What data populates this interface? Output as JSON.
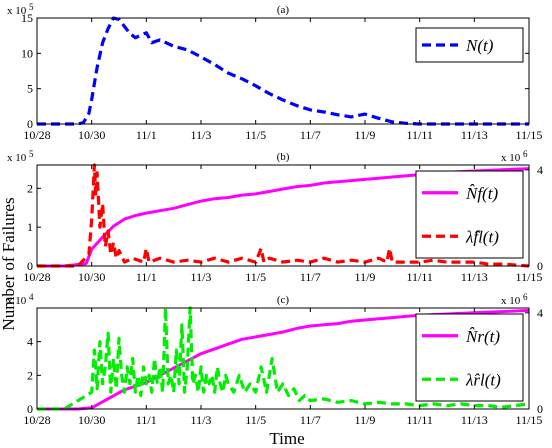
{
  "ylabel": "Number of Failures",
  "xlabel": "Time",
  "chart_data": [
    {
      "type": "line",
      "panel": "(a)",
      "x_ticks": [
        "10/28",
        "10/30",
        "11/1",
        "11/3",
        "11/5",
        "11/7",
        "11/9",
        "11/11",
        "11/13",
        "11/15"
      ],
      "xlim": [
        0,
        18
      ],
      "y_ticks": [
        "0",
        "5",
        "10",
        "15"
      ],
      "ylim": [
        0,
        15
      ],
      "y_scale_label": "x 10",
      "y_scale_exp": "5",
      "grid": false,
      "legend_position": "top-right",
      "series": [
        {
          "name": "N(t)",
          "axis": "left",
          "color": "#0000ff",
          "style": "dashed",
          "x": [
            0,
            0.5,
            1,
            1.5,
            1.7,
            1.9,
            2.0,
            2.2,
            2.4,
            2.6,
            2.8,
            3.0,
            3.2,
            3.4,
            3.6,
            3.8,
            4.0,
            4.2,
            4.5,
            5.0,
            5.5,
            6.0,
            6.5,
            7.0,
            7.5,
            8.0,
            8.5,
            9.0,
            9.5,
            10.0,
            10.5,
            11.0,
            11.5,
            12.0,
            12.5,
            13.0,
            13.5,
            14.0,
            14.5,
            15.0,
            15.5,
            16.0,
            17.0,
            18.0
          ],
          "y": [
            0.0,
            0.0,
            0.0,
            0.0,
            0.2,
            1.5,
            3.5,
            8.0,
            11.5,
            13.5,
            15.0,
            14.8,
            13.8,
            12.8,
            12.2,
            12.6,
            12.9,
            11.5,
            11.9,
            11.0,
            10.5,
            9.5,
            8.4,
            7.2,
            6.4,
            5.4,
            4.3,
            3.4,
            2.6,
            2.0,
            1.7,
            1.3,
            1.0,
            1.4,
            0.8,
            0.3,
            0.1,
            0.0,
            0.0,
            0.0,
            0.0,
            0.0,
            0.0,
            0.0
          ]
        }
      ]
    },
    {
      "type": "line",
      "panel": "(b)",
      "x_ticks": [
        "10/28",
        "10/30",
        "11/1",
        "11/3",
        "11/5",
        "11/7",
        "11/9",
        "11/11",
        "11/13",
        "11/15"
      ],
      "xlim": [
        0,
        18
      ],
      "y_ticks": [
        "0",
        "1",
        "2"
      ],
      "ylim": [
        0,
        2.6
      ],
      "y_scale_label": "x 10",
      "y_scale_exp": "5",
      "y2_ticks": [
        "0",
        "4"
      ],
      "y2lim": [
        0,
        4.2
      ],
      "y2_scale_label": "x 10",
      "y2_scale_exp": "6",
      "grid": false,
      "legend_position": "top-right",
      "series": [
        {
          "name": "N̂f(t)",
          "axis": "right",
          "color": "#ff00ff",
          "style": "solid",
          "x": [
            0,
            1,
            1.8,
            2.0,
            2.4,
            2.8,
            3.2,
            3.6,
            4.0,
            4.5,
            5.0,
            5.5,
            6.0,
            6.5,
            7.0,
            7.5,
            8.0,
            8.5,
            9.0,
            9.5,
            10.0,
            10.5,
            11.0,
            11.5,
            12.0,
            12.5,
            13.0,
            14.0,
            15.0,
            16.0,
            17.0,
            18.0
          ],
          "y": [
            0,
            0,
            0.1,
            0.7,
            1.2,
            1.65,
            1.95,
            2.1,
            2.2,
            2.3,
            2.4,
            2.55,
            2.7,
            2.8,
            2.85,
            2.95,
            3.0,
            3.1,
            3.2,
            3.3,
            3.35,
            3.45,
            3.5,
            3.55,
            3.6,
            3.65,
            3.7,
            3.8,
            3.9,
            3.95,
            4.0,
            4.05
          ]
        },
        {
          "name": "λ̂fl(t)",
          "axis": "left",
          "color": "#ff0000",
          "style": "dashed",
          "x": [
            0,
            1.5,
            1.9,
            2.0,
            2.1,
            2.15,
            2.2,
            2.3,
            2.4,
            2.5,
            2.6,
            2.7,
            2.8,
            2.9,
            3.0,
            3.2,
            3.5,
            3.9,
            4.0,
            4.1,
            4.5,
            5.0,
            5.5,
            6.0,
            6.5,
            7.0,
            7.5,
            8.0,
            8.2,
            8.3,
            8.5,
            9.0,
            9.5,
            10.0,
            10.5,
            11.0,
            11.5,
            12.0,
            12.5,
            12.8,
            12.9,
            13.0,
            13.5,
            14.0,
            14.5,
            15.0,
            15.5,
            16.0,
            16.5,
            17.0,
            18.0
          ],
          "y": [
            0,
            0,
            0.3,
            1.2,
            2.6,
            1.8,
            2.4,
            1.0,
            1.6,
            0.5,
            0.9,
            0.3,
            0.6,
            0.2,
            0.4,
            0.1,
            0.2,
            0.1,
            0.45,
            0.1,
            0.2,
            0.1,
            0.15,
            0.1,
            0.2,
            0.1,
            0.2,
            0.1,
            0.45,
            0.1,
            0.2,
            0.1,
            0.15,
            0.1,
            0.2,
            0.1,
            0.15,
            0.1,
            0.2,
            0.1,
            0.45,
            0.1,
            0.1,
            0.1,
            0.15,
            0.1,
            0.1,
            0.1,
            0.05,
            0.05,
            0.0
          ]
        }
      ]
    },
    {
      "type": "line",
      "panel": "(c)",
      "x_ticks": [
        "10/28",
        "10/30",
        "11/1",
        "11/3",
        "11/5",
        "11/7",
        "11/9",
        "11/11",
        "11/13",
        "11/15"
      ],
      "xlim": [
        0,
        18
      ],
      "y_ticks": [
        "0",
        "2",
        "4"
      ],
      "ylim": [
        0,
        6
      ],
      "y_scale_label": "x 10",
      "y_scale_exp": "4",
      "y2_ticks": [
        "0",
        "4"
      ],
      "y2lim": [
        0,
        4.2
      ],
      "y2_scale_label": "x 10",
      "y2_scale_exp": "6",
      "grid": false,
      "legend_position": "top-right",
      "series": [
        {
          "name": "N̂r(t)",
          "axis": "right",
          "color": "#ff00ff",
          "style": "solid",
          "x": [
            0,
            1.5,
            2.0,
            2.4,
            2.8,
            3.2,
            3.6,
            4.0,
            4.5,
            5.0,
            5.5,
            6.0,
            6.5,
            7.0,
            7.5,
            8.0,
            8.5,
            9.0,
            9.5,
            10.0,
            10.5,
            11.0,
            11.5,
            12.0,
            12.5,
            13.0,
            13.5,
            14.0,
            15.0,
            16.0,
            17.0,
            18.0
          ],
          "y": [
            0,
            0,
            0.05,
            0.3,
            0.55,
            0.8,
            0.95,
            1.1,
            1.4,
            1.7,
            2.0,
            2.3,
            2.5,
            2.7,
            2.9,
            3.0,
            3.1,
            3.2,
            3.35,
            3.45,
            3.5,
            3.55,
            3.65,
            3.7,
            3.75,
            3.8,
            3.85,
            3.9,
            3.95,
            4.0,
            4.05,
            4.1
          ]
        },
        {
          "name": "λ̂rl(t)",
          "axis": "left",
          "color": "#00ee00",
          "style": "dashed",
          "x": [
            0,
            1.0,
            1.5,
            2.0,
            2.1,
            2.2,
            2.3,
            2.4,
            2.5,
            2.6,
            2.7,
            2.8,
            2.9,
            3.0,
            3.1,
            3.2,
            3.3,
            3.4,
            3.5,
            3.6,
            3.7,
            3.8,
            3.9,
            4.0,
            4.1,
            4.2,
            4.3,
            4.4,
            4.5,
            4.6,
            4.7,
            4.8,
            4.9,
            5.0,
            5.1,
            5.2,
            5.3,
            5.4,
            5.5,
            5.6,
            5.7,
            5.8,
            5.9,
            6.0,
            6.1,
            6.2,
            6.3,
            6.4,
            6.5,
            6.6,
            6.7,
            6.8,
            6.9,
            7.0,
            7.2,
            7.4,
            7.6,
            7.8,
            8.0,
            8.2,
            8.4,
            8.6,
            8.8,
            9.0,
            9.2,
            9.4,
            9.6,
            9.8,
            10.0,
            10.5,
            11.0,
            11.5,
            12.0,
            12.5,
            13.0,
            13.5,
            14.0,
            14.5,
            15.0,
            15.5,
            16.0,
            16.5,
            17.0,
            17.5,
            18.0
          ],
          "y": [
            0,
            0,
            0.5,
            1.0,
            3.5,
            1.2,
            4.0,
            1.5,
            2.5,
            4.5,
            1.0,
            3.0,
            1.2,
            4.2,
            2.0,
            1.0,
            2.5,
            1.5,
            3.0,
            1.0,
            2.0,
            0.8,
            2.5,
            1.5,
            2.0,
            1.0,
            3.0,
            1.5,
            2.5,
            1.0,
            6.0,
            1.5,
            2.0,
            1.0,
            3.5,
            1.5,
            5.0,
            1.0,
            2.5,
            6.0,
            1.5,
            2.0,
            1.0,
            2.5,
            1.0,
            2.0,
            1.5,
            2.0,
            1.0,
            2.5,
            1.5,
            1.0,
            2.0,
            1.5,
            1.0,
            2.0,
            1.0,
            1.5,
            1.0,
            2.5,
            1.0,
            3.0,
            1.0,
            1.5,
            0.8,
            1.2,
            0.5,
            0.8,
            0.5,
            0.6,
            0.4,
            0.5,
            0.3,
            0.4,
            0.3,
            0.3,
            0.2,
            0.3,
            0.2,
            0.3,
            0.2,
            0.2,
            0.1,
            0.2,
            0.3
          ]
        }
      ]
    }
  ]
}
